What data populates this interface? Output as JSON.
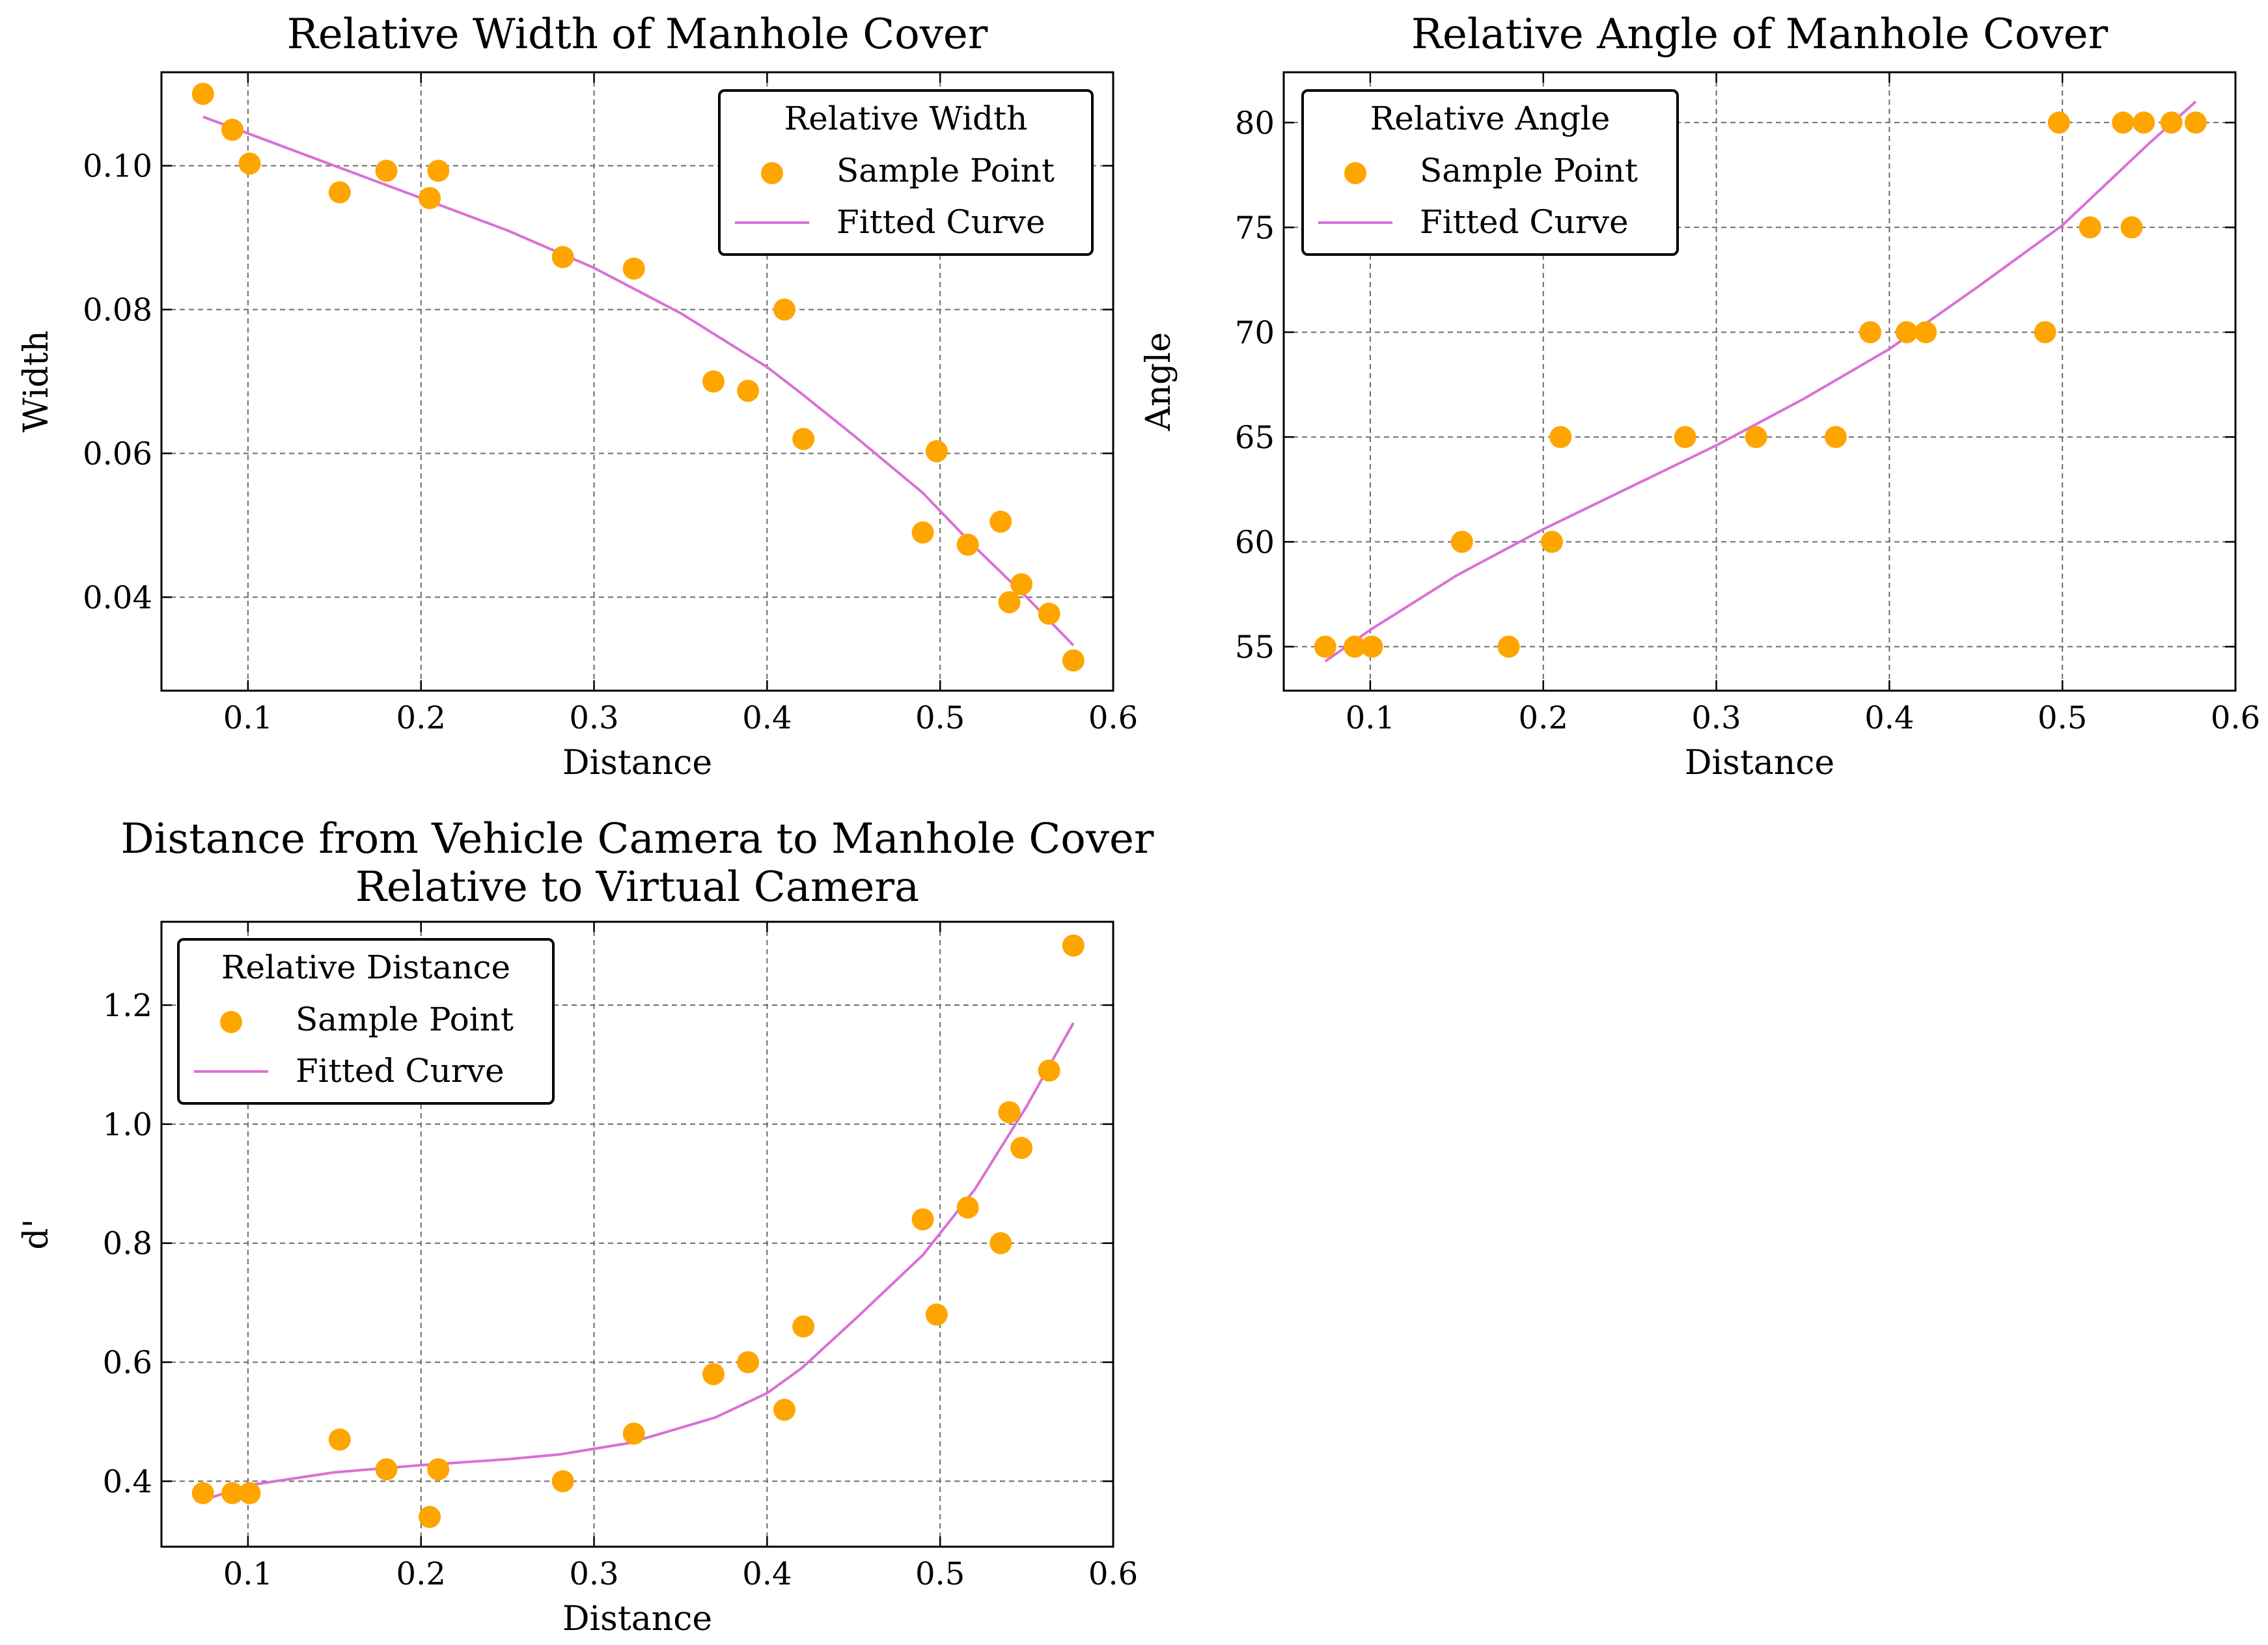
{
  "colors": {
    "points": "#ffa500",
    "curve": "#da70d6"
  },
  "chart_data": [
    {
      "type": "scatter",
      "title": [
        "Relative Width of Manhole Cover"
      ],
      "xlabel": "Distance",
      "ylabel": "Width",
      "xlim": [
        0.05,
        0.6
      ],
      "ylim": [
        0.027,
        0.113
      ],
      "xticks": [
        0.1,
        0.2,
        0.3,
        0.4,
        0.5,
        0.6
      ],
      "xtick_labels": [
        "0.1",
        "0.2",
        "0.3",
        "0.4",
        "0.5",
        "0.6"
      ],
      "yticks": [
        0.04,
        0.06,
        0.08,
        0.1
      ],
      "ytick_labels": [
        "0.04",
        "0.06",
        "0.08",
        "0.10"
      ],
      "grid": true,
      "legend": {
        "title": "Relative Width",
        "position": "top-right",
        "entries": [
          "Sample Point",
          "Fitted Curve"
        ]
      },
      "series": [
        {
          "name": "Sample Point",
          "kind": "scatter",
          "x": [
            0.074,
            0.091,
            0.101,
            0.153,
            0.18,
            0.205,
            0.21,
            0.282,
            0.323,
            0.369,
            0.389,
            0.41,
            0.421,
            0.49,
            0.498,
            0.516,
            0.535,
            0.54,
            0.547,
            0.563,
            0.577
          ],
          "y": [
            0.11,
            0.105,
            0.1003,
            0.0963,
            0.0993,
            0.0955,
            0.0993,
            0.0873,
            0.0857,
            0.07,
            0.0687,
            0.08,
            0.062,
            0.049,
            0.0603,
            0.0473,
            0.0505,
            0.0393,
            0.0418,
            0.0377,
            0.0312
          ]
        },
        {
          "name": "Fitted Curve",
          "kind": "line",
          "x": [
            0.074,
            0.1,
            0.15,
            0.2,
            0.25,
            0.3,
            0.35,
            0.4,
            0.42,
            0.45,
            0.49,
            0.52,
            0.55,
            0.577
          ],
          "y": [
            0.1068,
            0.1045,
            0.1,
            0.0955,
            0.091,
            0.0858,
            0.0795,
            0.072,
            0.0683,
            0.0625,
            0.0545,
            0.047,
            0.04,
            0.0333
          ]
        }
      ]
    },
    {
      "type": "scatter",
      "title": [
        "Relative Angle of Manhole Cover"
      ],
      "xlabel": "Distance",
      "ylabel": "Angle",
      "xlim": [
        0.05,
        0.6
      ],
      "ylim": [
        52.9,
        82.4
      ],
      "xticks": [
        0.1,
        0.2,
        0.3,
        0.4,
        0.5,
        0.6
      ],
      "xtick_labels": [
        "0.1",
        "0.2",
        "0.3",
        "0.4",
        "0.5",
        "0.6"
      ],
      "yticks": [
        55,
        60,
        65,
        70,
        75,
        80
      ],
      "ytick_labels": [
        "55",
        "60",
        "65",
        "70",
        "75",
        "80"
      ],
      "grid": true,
      "legend": {
        "title": "Relative Angle",
        "position": "top-left",
        "entries": [
          "Sample Point",
          "Fitted Curve"
        ]
      },
      "series": [
        {
          "name": "Sample Point",
          "kind": "scatter",
          "x": [
            0.074,
            0.091,
            0.101,
            0.153,
            0.18,
            0.205,
            0.21,
            0.282,
            0.323,
            0.369,
            0.389,
            0.41,
            0.421,
            0.49,
            0.498,
            0.516,
            0.535,
            0.54,
            0.547,
            0.563,
            0.577
          ],
          "y": [
            55,
            55,
            55,
            60,
            55,
            60,
            65,
            65,
            65,
            65,
            70,
            70,
            70,
            70,
            80,
            75,
            80,
            75,
            80,
            80,
            80
          ]
        },
        {
          "name": "Fitted Curve",
          "kind": "line",
          "x": [
            0.074,
            0.1,
            0.15,
            0.2,
            0.25,
            0.3,
            0.35,
            0.4,
            0.45,
            0.5,
            0.55,
            0.577
          ],
          "y": [
            54.3,
            55.8,
            58.4,
            60.6,
            62.6,
            64.6,
            66.8,
            69.2,
            72.1,
            75.1,
            79.0,
            81.0
          ]
        }
      ]
    },
    {
      "type": "scatter",
      "title": [
        "Distance from Vehicle Camera to Manhole Cover",
        "Relative to Virtual Camera"
      ],
      "xlabel": "Distance",
      "ylabel": "d'",
      "xlim": [
        0.05,
        0.6
      ],
      "ylim": [
        0.29,
        1.34
      ],
      "xticks": [
        0.1,
        0.2,
        0.3,
        0.4,
        0.5,
        0.6
      ],
      "xtick_labels": [
        "0.1",
        "0.2",
        "0.3",
        "0.4",
        "0.5",
        "0.6"
      ],
      "yticks": [
        0.4,
        0.6,
        0.8,
        1.0,
        1.2
      ],
      "ytick_labels": [
        "0.4",
        "0.6",
        "0.8",
        "1.0",
        "1.2"
      ],
      "grid": true,
      "legend": {
        "title": "Relative Distance",
        "position": "top-left",
        "entries": [
          "Sample Point",
          "Fitted Curve"
        ]
      },
      "series": [
        {
          "name": "Sample Point",
          "kind": "scatter",
          "x": [
            0.074,
            0.091,
            0.101,
            0.153,
            0.18,
            0.205,
            0.21,
            0.282,
            0.323,
            0.369,
            0.389,
            0.41,
            0.421,
            0.49,
            0.498,
            0.516,
            0.535,
            0.54,
            0.547,
            0.563,
            0.577
          ],
          "y": [
            0.38,
            0.38,
            0.38,
            0.47,
            0.42,
            0.34,
            0.42,
            0.4,
            0.48,
            0.58,
            0.6,
            0.52,
            0.66,
            0.84,
            0.68,
            0.86,
            0.8,
            1.02,
            0.96,
            1.09,
            1.3
          ]
        },
        {
          "name": "Fitted Curve",
          "kind": "line",
          "x": [
            0.074,
            0.1,
            0.15,
            0.2,
            0.25,
            0.28,
            0.32,
            0.37,
            0.4,
            0.42,
            0.45,
            0.49,
            0.52,
            0.55,
            0.577
          ],
          "y": [
            0.368,
            0.393,
            0.415,
            0.427,
            0.437,
            0.445,
            0.464,
            0.507,
            0.548,
            0.59,
            0.67,
            0.78,
            0.89,
            1.03,
            1.17
          ]
        }
      ]
    }
  ]
}
